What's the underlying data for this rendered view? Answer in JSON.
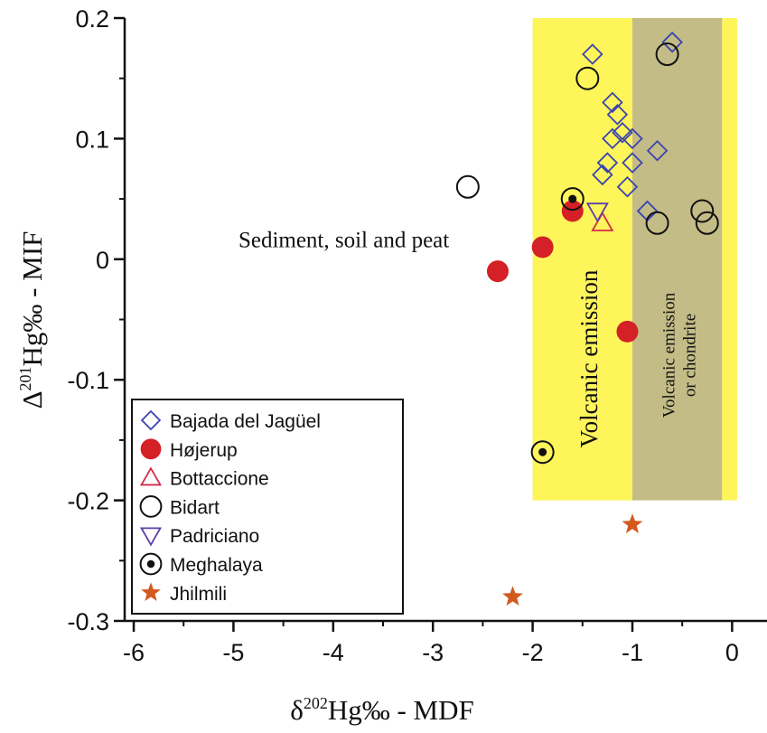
{
  "chart_data": {
    "type": "scatter",
    "x_axis": {
      "label_parts": [
        "δ",
        "202",
        "Hg‰ - MDF"
      ],
      "ticks": [
        -6,
        -5,
        -4,
        -3,
        -2,
        -1,
        0
      ],
      "tick_labels": [
        "-6",
        "-5",
        "-4",
        "-3",
        "-2",
        "-1",
        "0"
      ],
      "range": [
        -6.1,
        0.35
      ]
    },
    "y_axis": {
      "label_parts": [
        "Δ",
        "201",
        "Hg‰ - MIF"
      ],
      "ticks": [
        0.2,
        0.1,
        0,
        -0.1,
        -0.2,
        -0.3
      ],
      "tick_labels": [
        "0.2",
        "0.1",
        "0",
        "-0.1",
        "-0.2",
        "-0.3"
      ],
      "range": [
        -0.3,
        0.2
      ]
    },
    "regions": [
      {
        "label": "Volcanic emission",
        "x_range": [
          -2.0,
          -1.0
        ],
        "y_range": [
          -0.2,
          0.2
        ],
        "color": "#fdf55a"
      },
      {
        "label_lines": [
          "Volcanic emission",
          "or chondrite"
        ],
        "x_range": [
          -1.0,
          -0.1
        ],
        "y_range": [
          -0.2,
          0.2
        ],
        "color": "#c4bc86"
      },
      {
        "label": "",
        "x_range": [
          -0.1,
          0.05
        ],
        "y_range": [
          -0.2,
          0.2
        ],
        "color": "#fdf55a"
      }
    ],
    "annotations": [
      {
        "text": "Sediment, soil and peat",
        "x": -4.95,
        "y": 0.01
      }
    ],
    "series": [
      {
        "name": "Bajada del Jagüel",
        "marker": "diamond",
        "color": "#3a44b0",
        "points": [
          [
            -1.4,
            0.17
          ],
          [
            -0.6,
            0.18
          ],
          [
            -1.2,
            0.13
          ],
          [
            -1.15,
            0.12
          ],
          [
            -1.1,
            0.105
          ],
          [
            -1.2,
            0.1
          ],
          [
            -1.0,
            0.1
          ],
          [
            -1.25,
            0.08
          ],
          [
            -1.0,
            0.08
          ],
          [
            -0.75,
            0.09
          ],
          [
            -1.3,
            0.07
          ],
          [
            -1.05,
            0.06
          ],
          [
            -0.85,
            0.04
          ]
        ]
      },
      {
        "name": "Højerup",
        "marker": "filled-circle",
        "color": "#d42027",
        "points": [
          [
            -2.35,
            -0.01
          ],
          [
            -1.9,
            0.01
          ],
          [
            -1.6,
            0.04
          ],
          [
            -1.05,
            -0.06
          ]
        ]
      },
      {
        "name": "Bottaccione",
        "marker": "triangle-up",
        "color": "#d42b4a",
        "points": [
          [
            -1.3,
            0.03
          ]
        ]
      },
      {
        "name": "Bidart",
        "marker": "open-circle",
        "color": "#111111",
        "points": [
          [
            -2.65,
            0.06
          ],
          [
            -1.45,
            0.15
          ],
          [
            -0.65,
            0.17
          ],
          [
            -0.75,
            0.03
          ],
          [
            -0.3,
            0.04
          ],
          [
            -0.25,
            0.03
          ]
        ]
      },
      {
        "name": "Padriciano",
        "marker": "triangle-down",
        "color": "#5b3fa8",
        "points": [
          [
            -1.35,
            0.04
          ]
        ]
      },
      {
        "name": "Meghalaya",
        "marker": "dot-circle",
        "color": "#111111",
        "points": [
          [
            -1.6,
            0.05
          ],
          [
            -1.9,
            -0.16
          ]
        ]
      },
      {
        "name": "Jhilmili",
        "marker": "star",
        "color": "#d4591f",
        "points": [
          [
            -2.2,
            -0.28
          ],
          [
            -1.0,
            -0.22
          ]
        ]
      }
    ],
    "legend": {
      "placement": "bottom-left"
    }
  }
}
